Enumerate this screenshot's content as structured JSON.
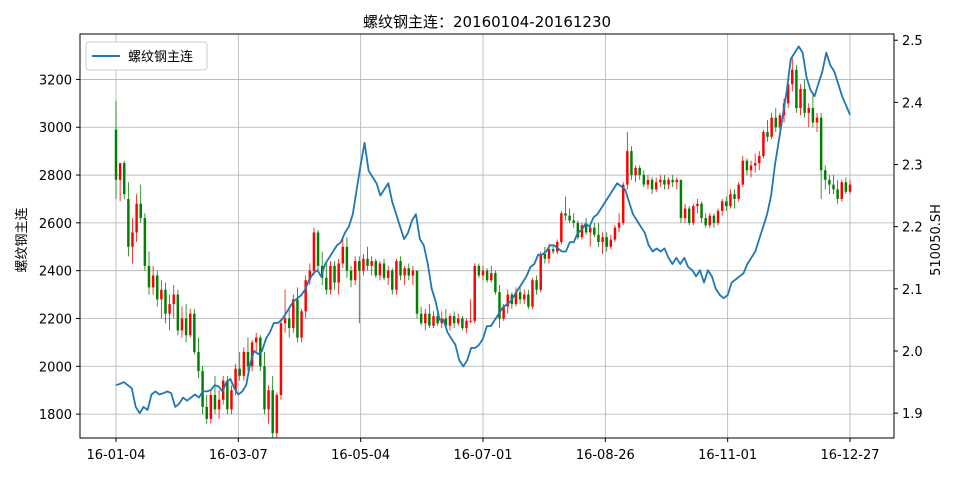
{
  "chart_data": {
    "type": "line",
    "title": "螺纹钢主连：20160104-20161230",
    "xlabel": "",
    "ylabel": "螺纹钢主连",
    "y2label": "510050.SH",
    "x_ticks": [
      "16-01-04",
      "16-03-07",
      "16-05-04",
      "16-07-01",
      "16-08-26",
      "16-11-01",
      "16-12-27"
    ],
    "ylim": [
      1700,
      3390
    ],
    "yticks": [
      1800,
      2000,
      2200,
      2400,
      2600,
      2800,
      3000,
      3200
    ],
    "y2lim": [
      1.86,
      2.51
    ],
    "y2ticks": [
      1.9,
      2.0,
      2.1,
      2.2,
      2.3,
      2.4,
      2.5
    ],
    "grid": true,
    "legend_position": "top-left",
    "legend": [
      {
        "name": "螺纹钢主连",
        "marker": "line"
      }
    ],
    "colors": {
      "line": "#1f77b4",
      "up": "#ff0000",
      "down": "#008000"
    },
    "candles": [
      [
        2990,
        3110,
        2700,
        2780
      ],
      [
        2780,
        2850,
        2690,
        2850
      ],
      [
        2850,
        2860,
        2700,
        2720
      ],
      [
        2700,
        2770,
        2460,
        2500
      ],
      [
        2500,
        2620,
        2430,
        2560
      ],
      [
        2560,
        2720,
        2520,
        2680
      ],
      [
        2680,
        2760,
        2600,
        2620
      ],
      [
        2620,
        2640,
        2400,
        2420
      ],
      [
        2420,
        2480,
        2300,
        2330
      ],
      [
        2330,
        2420,
        2300,
        2380
      ],
      [
        2380,
        2400,
        2250,
        2280
      ],
      [
        2280,
        2360,
        2200,
        2320
      ],
      [
        2320,
        2350,
        2180,
        2220
      ],
      [
        2220,
        2300,
        2150,
        2260
      ],
      [
        2260,
        2340,
        2200,
        2300
      ],
      [
        2300,
        2320,
        2130,
        2150
      ],
      [
        2150,
        2250,
        2120,
        2200
      ],
      [
        2200,
        2260,
        2100,
        2130
      ],
      [
        2130,
        2240,
        2120,
        2220
      ],
      [
        2220,
        2240,
        2050,
        2060
      ],
      [
        2060,
        2120,
        1950,
        1980
      ],
      [
        1980,
        2000,
        1800,
        1830
      ],
      [
        1830,
        1880,
        1760,
        1780
      ],
      [
        1780,
        1900,
        1760,
        1880
      ],
      [
        1880,
        1960,
        1800,
        1820
      ],
      [
        1820,
        1900,
        1780,
        1860
      ],
      [
        1860,
        1960,
        1840,
        1940
      ],
      [
        1940,
        1960,
        1800,
        1820
      ],
      [
        1820,
        1920,
        1800,
        1900
      ],
      [
        1900,
        2010,
        1880,
        1990
      ],
      [
        1990,
        2060,
        1940,
        1960
      ],
      [
        1960,
        2080,
        1940,
        2060
      ],
      [
        2060,
        2120,
        1980,
        2000
      ],
      [
        2000,
        2110,
        1980,
        2100
      ],
      [
        2100,
        2140,
        2060,
        2120
      ],
      [
        2120,
        2130,
        1980,
        2000
      ],
      [
        2000,
        2060,
        1800,
        1820
      ],
      [
        1820,
        1920,
        1760,
        1900
      ],
      [
        1900,
        1960,
        1700,
        1720
      ],
      [
        1720,
        1890,
        1700,
        1880
      ],
      [
        1880,
        2200,
        1860,
        2180
      ],
      [
        2180,
        2320,
        2140,
        2200
      ],
      [
        2200,
        2250,
        2120,
        2160
      ],
      [
        2160,
        2300,
        2140,
        2280
      ],
      [
        2280,
        2330,
        2100,
        2120
      ],
      [
        2120,
        2240,
        2100,
        2230
      ],
      [
        2230,
        2380,
        2200,
        2360
      ],
      [
        2360,
        2430,
        2340,
        2400
      ],
      [
        2400,
        2580,
        2380,
        2560
      ],
      [
        2560,
        2570,
        2400,
        2420
      ],
      [
        2420,
        2480,
        2340,
        2370
      ],
      [
        2370,
        2430,
        2300,
        2320
      ],
      [
        2320,
        2440,
        2300,
        2420
      ],
      [
        2420,
        2440,
        2320,
        2350
      ],
      [
        2350,
        2450,
        2300,
        2430
      ],
      [
        2430,
        2540,
        2410,
        2500
      ],
      [
        2500,
        2540,
        2370,
        2400
      ],
      [
        2400,
        2420,
        2330,
        2360
      ],
      [
        2360,
        2460,
        2340,
        2440
      ],
      [
        2440,
        2460,
        2180,
        2400
      ],
      [
        2400,
        2470,
        2380,
        2450
      ],
      [
        2450,
        2500,
        2400,
        2420
      ],
      [
        2420,
        2460,
        2380,
        2440
      ],
      [
        2440,
        2450,
        2370,
        2380
      ],
      [
        2380,
        2440,
        2360,
        2430
      ],
      [
        2430,
        2450,
        2360,
        2370
      ],
      [
        2370,
        2420,
        2340,
        2400
      ],
      [
        2400,
        2410,
        2300,
        2320
      ],
      [
        2320,
        2450,
        2300,
        2440
      ],
      [
        2440,
        2460,
        2360,
        2380
      ],
      [
        2380,
        2420,
        2340,
        2410
      ],
      [
        2410,
        2430,
        2360,
        2380
      ],
      [
        2380,
        2420,
        2340,
        2400
      ],
      [
        2400,
        2400,
        2200,
        2220
      ],
      [
        2220,
        2250,
        2170,
        2180
      ],
      [
        2180,
        2240,
        2150,
        2220
      ],
      [
        2220,
        2260,
        2160,
        2170
      ],
      [
        2170,
        2230,
        2160,
        2210
      ],
      [
        2210,
        2240,
        2170,
        2180
      ],
      [
        2180,
        2230,
        2160,
        2200
      ],
      [
        2200,
        2240,
        2160,
        2170
      ],
      [
        2170,
        2220,
        2150,
        2210
      ],
      [
        2210,
        2230,
        2160,
        2180
      ],
      [
        2180,
        2220,
        2170,
        2200
      ],
      [
        2200,
        2210,
        2150,
        2160
      ],
      [
        2160,
        2200,
        2140,
        2190
      ],
      [
        2190,
        2280,
        2180,
        2190
      ],
      [
        2190,
        2430,
        2180,
        2420
      ],
      [
        2420,
        2430,
        2370,
        2380
      ],
      [
        2380,
        2420,
        2360,
        2400
      ],
      [
        2400,
        2410,
        2350,
        2360
      ],
      [
        2360,
        2420,
        2350,
        2390
      ],
      [
        2390,
        2400,
        2300,
        2310
      ],
      [
        2310,
        2340,
        2160,
        2200
      ],
      [
        2200,
        2260,
        2190,
        2250
      ],
      [
        2250,
        2320,
        2220,
        2300
      ],
      [
        2300,
        2310,
        2240,
        2260
      ],
      [
        2260,
        2330,
        2250,
        2310
      ],
      [
        2310,
        2330,
        2260,
        2280
      ],
      [
        2280,
        2320,
        2260,
        2300
      ],
      [
        2300,
        2320,
        2240,
        2250
      ],
      [
        2250,
        2370,
        2240,
        2360
      ],
      [
        2360,
        2380,
        2300,
        2320
      ],
      [
        2320,
        2480,
        2310,
        2470
      ],
      [
        2470,
        2500,
        2430,
        2450
      ],
      [
        2450,
        2510,
        2430,
        2490
      ],
      [
        2490,
        2510,
        2470,
        2480
      ],
      [
        2480,
        2530,
        2470,
        2520
      ],
      [
        2520,
        2650,
        2510,
        2640
      ],
      [
        2640,
        2710,
        2610,
        2630
      ],
      [
        2630,
        2660,
        2600,
        2610
      ],
      [
        2610,
        2640,
        2580,
        2600
      ],
      [
        2600,
        2610,
        2530,
        2540
      ],
      [
        2540,
        2600,
        2530,
        2590
      ],
      [
        2590,
        2620,
        2550,
        2560
      ],
      [
        2560,
        2590,
        2500,
        2580
      ],
      [
        2580,
        2600,
        2540,
        2550
      ],
      [
        2550,
        2600,
        2500,
        2520
      ],
      [
        2520,
        2560,
        2470,
        2540
      ],
      [
        2540,
        2560,
        2480,
        2500
      ],
      [
        2500,
        2550,
        2490,
        2530
      ],
      [
        2530,
        2590,
        2520,
        2580
      ],
      [
        2580,
        2640,
        2560,
        2600
      ],
      [
        2600,
        2770,
        2590,
        2760
      ],
      [
        2760,
        2980,
        2740,
        2900
      ],
      [
        2900,
        2920,
        2780,
        2800
      ],
      [
        2800,
        2840,
        2770,
        2830
      ],
      [
        2830,
        2840,
        2780,
        2800
      ],
      [
        2800,
        2820,
        2750,
        2760
      ],
      [
        2760,
        2800,
        2740,
        2780
      ],
      [
        2780,
        2790,
        2720,
        2740
      ],
      [
        2740,
        2790,
        2730,
        2770
      ],
      [
        2770,
        2800,
        2750,
        2780
      ],
      [
        2780,
        2800,
        2740,
        2760
      ],
      [
        2760,
        2790,
        2740,
        2780
      ],
      [
        2780,
        2800,
        2750,
        2770
      ],
      [
        2770,
        2790,
        2740,
        2780
      ],
      [
        2780,
        2780,
        2600,
        2620
      ],
      [
        2620,
        2680,
        2600,
        2660
      ],
      [
        2660,
        2670,
        2590,
        2600
      ],
      [
        2600,
        2680,
        2590,
        2670
      ],
      [
        2670,
        2700,
        2640,
        2680
      ],
      [
        2680,
        2690,
        2600,
        2620
      ],
      [
        2620,
        2640,
        2580,
        2590
      ],
      [
        2590,
        2640,
        2580,
        2630
      ],
      [
        2630,
        2640,
        2580,
        2600
      ],
      [
        2600,
        2660,
        2590,
        2650
      ],
      [
        2650,
        2700,
        2630,
        2690
      ],
      [
        2690,
        2710,
        2650,
        2670
      ],
      [
        2670,
        2740,
        2660,
        2720
      ],
      [
        2720,
        2740,
        2660,
        2700
      ],
      [
        2700,
        2770,
        2690,
        2760
      ],
      [
        2760,
        2880,
        2750,
        2860
      ],
      [
        2860,
        2870,
        2800,
        2820
      ],
      [
        2820,
        2860,
        2790,
        2840
      ],
      [
        2840,
        2890,
        2810,
        2850
      ],
      [
        2850,
        2900,
        2820,
        2880
      ],
      [
        2880,
        2990,
        2870,
        2980
      ],
      [
        2980,
        3030,
        2940,
        2960
      ],
      [
        2960,
        3060,
        2950,
        3040
      ],
      [
        3040,
        3080,
        2980,
        3000
      ],
      [
        3000,
        3060,
        2960,
        3050
      ],
      [
        3050,
        3120,
        3020,
        3100
      ],
      [
        3100,
        3200,
        3080,
        3180
      ],
      [
        3180,
        3300,
        3150,
        3240
      ],
      [
        3240,
        3260,
        3060,
        3080
      ],
      [
        3080,
        3180,
        3050,
        3160
      ],
      [
        3160,
        3200,
        3040,
        3060
      ],
      [
        3060,
        3100,
        3000,
        3080
      ],
      [
        3080,
        3140,
        3000,
        3020
      ],
      [
        3020,
        3060,
        2980,
        3040
      ],
      [
        3040,
        3060,
        2700,
        2820
      ],
      [
        2820,
        2840,
        2740,
        2780
      ],
      [
        2780,
        2800,
        2720,
        2760
      ],
      [
        2760,
        2800,
        2720,
        2740
      ],
      [
        2740,
        2780,
        2680,
        2700
      ],
      [
        2700,
        2780,
        2690,
        2770
      ],
      [
        2770,
        2790,
        2720,
        2730
      ],
      [
        2730,
        2780,
        2720,
        2760
      ]
    ],
    "series": [
      {
        "name": "螺纹钢主连",
        "values": [
          1.945,
          1.947,
          1.95,
          1.945,
          1.94,
          1.91,
          1.9,
          1.91,
          1.905,
          1.93,
          1.935,
          1.93,
          1.932,
          1.935,
          1.932,
          1.91,
          1.915,
          1.925,
          1.92,
          1.925,
          1.93,
          1.925,
          1.935,
          1.935,
          1.937,
          1.945,
          1.943,
          1.935,
          1.95,
          1.955,
          1.94,
          1.93,
          1.935,
          1.945,
          1.98,
          2.0,
          1.995,
          2.0,
          2.02,
          2.03,
          2.045,
          2.045,
          2.05,
          2.06,
          2.07,
          2.08,
          2.085,
          2.09,
          2.1,
          2.115,
          2.125,
          2.13,
          2.12,
          2.14,
          2.15,
          2.16,
          2.17,
          2.175,
          2.19,
          2.2,
          2.22,
          2.26,
          2.3,
          2.335,
          2.29,
          2.28,
          2.27,
          2.25,
          2.26,
          2.27,
          2.24,
          2.22,
          2.2,
          2.18,
          2.19,
          2.21,
          2.22,
          2.18,
          2.17,
          2.14,
          2.1,
          2.08,
          2.05,
          2.05,
          2.03,
          2.02,
          2.01,
          1.985,
          1.975,
          1.985,
          2.005,
          2.005,
          2.01,
          2.02,
          2.04,
          2.04,
          2.05,
          2.06,
          2.07,
          2.075,
          2.08,
          2.09,
          2.1,
          2.11,
          2.12,
          2.135,
          2.14,
          2.155,
          2.155,
          2.16,
          2.17,
          2.17,
          2.165,
          2.16,
          2.16,
          2.175,
          2.175,
          2.19,
          2.195,
          2.205,
          2.2,
          2.215,
          2.22,
          2.23,
          2.24,
          2.25,
          2.26,
          2.27,
          2.265,
          2.26,
          2.24,
          2.22,
          2.21,
          2.2,
          2.19,
          2.17,
          2.16,
          2.165,
          2.16,
          2.165,
          2.15,
          2.14,
          2.15,
          2.14,
          2.15,
          2.135,
          2.13,
          2.12,
          2.13,
          2.11,
          2.13,
          2.12,
          2.1,
          2.09,
          2.085,
          2.09,
          2.11,
          2.115,
          2.12,
          2.125,
          2.14,
          2.15,
          2.16,
          2.18,
          2.2,
          2.22,
          2.25,
          2.3,
          2.34,
          2.38,
          2.42,
          2.47,
          2.48,
          2.49,
          2.48,
          2.44,
          2.42,
          2.41,
          2.43,
          2.45,
          2.48,
          2.46,
          2.45,
          2.43,
          2.41,
          2.395,
          2.38
        ]
      }
    ]
  }
}
